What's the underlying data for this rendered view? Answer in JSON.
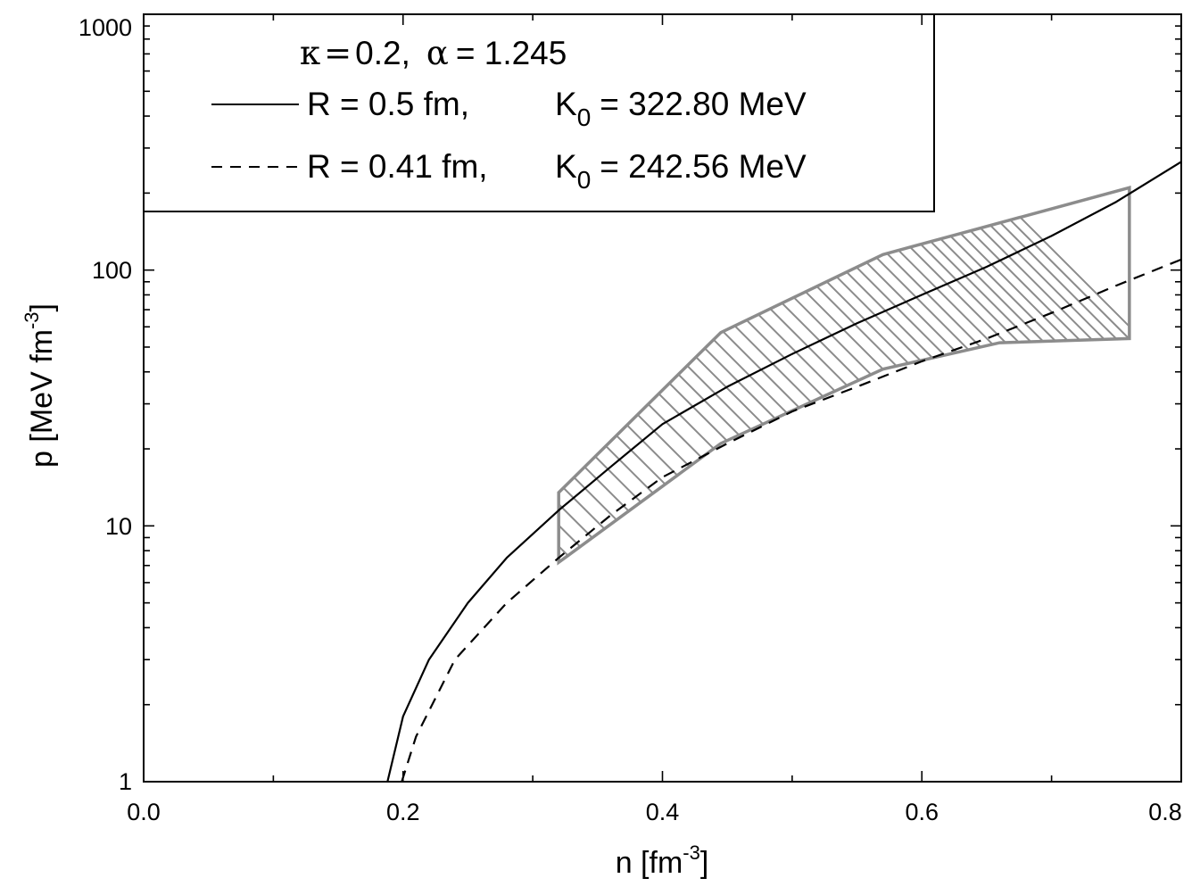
{
  "chart_data": {
    "type": "line",
    "x_scale": "linear",
    "y_scale": "log",
    "xlim": [
      0.0,
      0.8
    ],
    "ylim": [
      1,
      1000
    ],
    "xlabel": {
      "base": "n [fm",
      "sup": "-3",
      "end": "]"
    },
    "ylabel": {
      "base": "p [MeV fm",
      "sup": "-3",
      "end": "]"
    },
    "x_ticks": [
      "0.0",
      "0.2",
      "0.4",
      "0.6",
      "0.8"
    ],
    "y_ticks": [
      "1",
      "10",
      "100",
      "1000"
    ],
    "legend": {
      "placement": "top-left",
      "header": {
        "kappa_sym": "κ",
        "kappa_eq": "=",
        "kappa_val": "0.2,",
        "alpha_sym": "α",
        "alpha_val": "= 1.245"
      },
      "entries": [
        {
          "line": "solid",
          "r_text": "R = 0.5 fm,",
          "k_main": "K",
          "k_sub": "0",
          "k_value": "= 322.80 MeV"
        },
        {
          "line": "dashed",
          "r_text": "R = 0.41 fm,",
          "k_main": "K",
          "k_sub": "0",
          "k_value": "= 242.56 MeV"
        }
      ]
    },
    "series": [
      {
        "style": "solid",
        "color": "#000000",
        "points": [
          [
            0.188,
            1.0
          ],
          [
            0.2,
            1.8
          ],
          [
            0.22,
            3.0
          ],
          [
            0.25,
            5.0
          ],
          [
            0.28,
            7.5
          ],
          [
            0.32,
            11.5
          ],
          [
            0.36,
            17
          ],
          [
            0.4,
            25
          ],
          [
            0.45,
            35
          ],
          [
            0.5,
            47
          ],
          [
            0.55,
            62
          ],
          [
            0.6,
            80
          ],
          [
            0.65,
            103
          ],
          [
            0.7,
            136
          ],
          [
            0.75,
            185
          ],
          [
            0.8,
            265
          ]
        ]
      },
      {
        "style": "dashed",
        "color": "#000000",
        "points": [
          [
            0.199,
            1.0
          ],
          [
            0.21,
            1.5
          ],
          [
            0.24,
            3.0
          ],
          [
            0.28,
            5.0
          ],
          [
            0.32,
            7.5
          ],
          [
            0.36,
            11
          ],
          [
            0.4,
            15.5
          ],
          [
            0.45,
            21
          ],
          [
            0.5,
            28
          ],
          [
            0.55,
            35
          ],
          [
            0.6,
            44
          ],
          [
            0.65,
            54
          ],
          [
            0.7,
            68
          ],
          [
            0.75,
            87
          ],
          [
            0.8,
            110
          ]
        ]
      }
    ],
    "band": {
      "style": "hatched",
      "color": "#8c8c8c",
      "upper": [
        [
          0.32,
          13.5
        ],
        [
          0.445,
          57
        ],
        [
          0.57,
          115
        ],
        [
          0.76,
          210
        ]
      ],
      "lower": [
        [
          0.32,
          7.2
        ],
        [
          0.445,
          21
        ],
        [
          0.57,
          41
        ],
        [
          0.66,
          52
        ],
        [
          0.76,
          54
        ]
      ]
    }
  }
}
